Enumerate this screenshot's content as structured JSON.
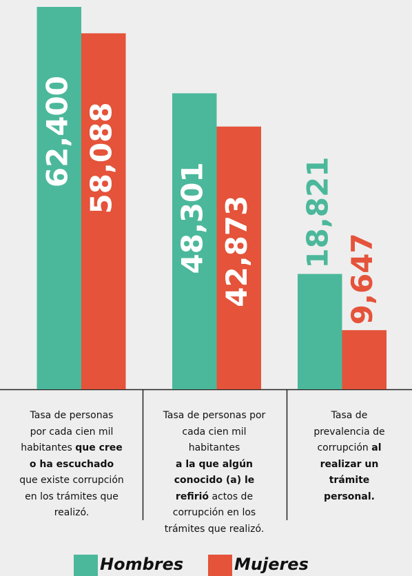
{
  "chart_data": {
    "type": "bar",
    "categories": [
      [
        [
          {
            "text": "Tasa de personas",
            "bold": false
          }
        ],
        [
          {
            "text": "por cada cien mil",
            "bold": false
          }
        ],
        [
          {
            "text": "habitantes ",
            "bold": false
          },
          {
            "text": "que cree",
            "bold": true
          }
        ],
        [
          {
            "text": "o ha escuchado",
            "bold": true
          }
        ],
        [
          {
            "text": "que existe corrupción",
            "bold": false
          }
        ],
        [
          {
            "text": "en los trámites que",
            "bold": false
          }
        ],
        [
          {
            "text": "realizó.",
            "bold": false
          }
        ]
      ],
      [
        [
          {
            "text": "Tasa de personas por",
            "bold": false
          }
        ],
        [
          {
            "text": "cada cien mil",
            "bold": false
          }
        ],
        [
          {
            "text": "habitantes",
            "bold": false
          }
        ],
        [
          {
            "text": "a la que algún",
            "bold": true
          }
        ],
        [
          {
            "text": "conocido (a) le",
            "bold": true
          }
        ],
        [
          {
            "text": "refirió",
            "bold": true
          },
          {
            "text": " actos de",
            "bold": false
          }
        ],
        [
          {
            "text": "corrupción en los",
            "bold": false
          }
        ],
        [
          {
            "text": "trámites que realizó.",
            "bold": false
          }
        ]
      ],
      [
        [
          {
            "text": "Tasa de",
            "bold": false
          }
        ],
        [
          {
            "text": "prevalencia de",
            "bold": false
          }
        ],
        [
          {
            "text": "corrupción ",
            "bold": false
          },
          {
            "text": "al",
            "bold": true
          }
        ],
        [
          {
            "text": "realizar un",
            "bold": true
          }
        ],
        [
          {
            "text": "trámite",
            "bold": true
          }
        ],
        [
          {
            "text": "personal.",
            "bold": true
          }
        ]
      ]
    ],
    "series": [
      {
        "name": "Hombres",
        "color": "#4cb89b",
        "values": [
          62400,
          48301,
          18821
        ],
        "value_labels": [
          "62,400",
          "48,301",
          "18,821"
        ]
      },
      {
        "name": "Mujeres",
        "color": "#e4533a",
        "values": [
          58088,
          42873,
          9647
        ],
        "value_labels": [
          "58,088",
          "42,873",
          "9,647"
        ]
      }
    ]
  }
}
